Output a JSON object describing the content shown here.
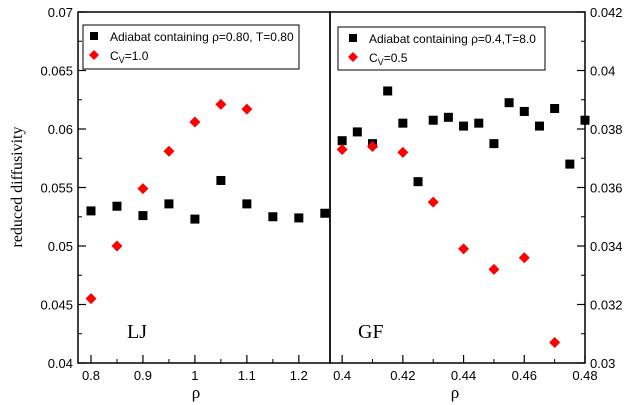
{
  "chart_data": [
    {
      "type": "scatter",
      "ylabel": "reduced diffusivity",
      "xlabel": "ρ",
      "xlim": [
        0.775,
        1.26
      ],
      "ylim": [
        0.04,
        0.07
      ],
      "xticks": [
        0.8,
        0.9,
        1.0,
        1.1,
        1.2
      ],
      "xtick_labels": [
        "0.8",
        "0.9",
        "1",
        "1.1",
        "1.2"
      ],
      "yticks": [
        0.04,
        0.045,
        0.05,
        0.055,
        0.06,
        0.065,
        0.07
      ],
      "ytick_labels": [
        "0.04",
        "0.045",
        "0.05",
        "0.055",
        "0.06",
        "0.065",
        "0.07"
      ],
      "annotation": "LJ",
      "legend_position": "top-left",
      "series": [
        {
          "name": "Adiabat containing ρ=0.80, T=0.80",
          "marker": "square",
          "color": "#000000",
          "x": [
            0.8,
            0.85,
            0.9,
            0.95,
            1.0,
            1.05,
            1.1,
            1.15,
            1.2,
            1.25
          ],
          "y": [
            0.053,
            0.0534,
            0.0526,
            0.0536,
            0.0523,
            0.0556,
            0.0536,
            0.0525,
            0.0524,
            0.0528
          ]
        },
        {
          "name": "C",
          "name_sub": "V",
          "name_tail": "=1.0",
          "marker": "diamond",
          "color": "#ff0000",
          "x": [
            0.8,
            0.85,
            0.9,
            0.95,
            1.0,
            1.05,
            1.1
          ],
          "y": [
            0.0455,
            0.05,
            0.0549,
            0.0581,
            0.0606,
            0.0621,
            0.0617
          ]
        }
      ]
    },
    {
      "type": "scatter",
      "xlabel": "ρ",
      "xlim": [
        0.396,
        0.48
      ],
      "ylim": [
        0.03,
        0.042
      ],
      "xticks": [
        0.4,
        0.42,
        0.44,
        0.46,
        0.48
      ],
      "xtick_labels": [
        "0.4",
        "0.42",
        "0.44",
        "0.46",
        "0.48"
      ],
      "yticks": [
        0.03,
        0.032,
        0.034,
        0.036,
        0.038,
        0.04,
        0.042
      ],
      "ytick_labels": [
        "0.03",
        "0.032",
        "0.034",
        "0.036",
        "0.038",
        "0.04",
        "0.042"
      ],
      "y_axis_side": "right",
      "annotation": "GF",
      "legend_position": "top-left",
      "series": [
        {
          "name": "Adiabat containing ρ=0.4,T=8.0",
          "marker": "square",
          "color": "#000000",
          "x": [
            0.4,
            0.405,
            0.41,
            0.415,
            0.42,
            0.425,
            0.43,
            0.435,
            0.44,
            0.445,
            0.45,
            0.455,
            0.46,
            0.465,
            0.47,
            0.475,
            0.48
          ],
          "y": [
            0.0376,
            0.0379,
            0.0375,
            0.0393,
            0.0382,
            0.0362,
            0.0383,
            0.0384,
            0.0381,
            0.0382,
            0.0375,
            0.0389,
            0.0386,
            0.0381,
            0.0387,
            0.0368,
            0.0383
          ]
        },
        {
          "name": "C",
          "name_sub": "V",
          "name_tail": "=0.5",
          "marker": "diamond",
          "color": "#ff0000",
          "x": [
            0.4,
            0.41,
            0.42,
            0.43,
            0.44,
            0.45,
            0.46,
            0.47
          ],
          "y": [
            0.0373,
            0.0374,
            0.0372,
            0.0355,
            0.0339,
            0.0332,
            0.0336,
            0.0307
          ]
        }
      ]
    }
  ]
}
